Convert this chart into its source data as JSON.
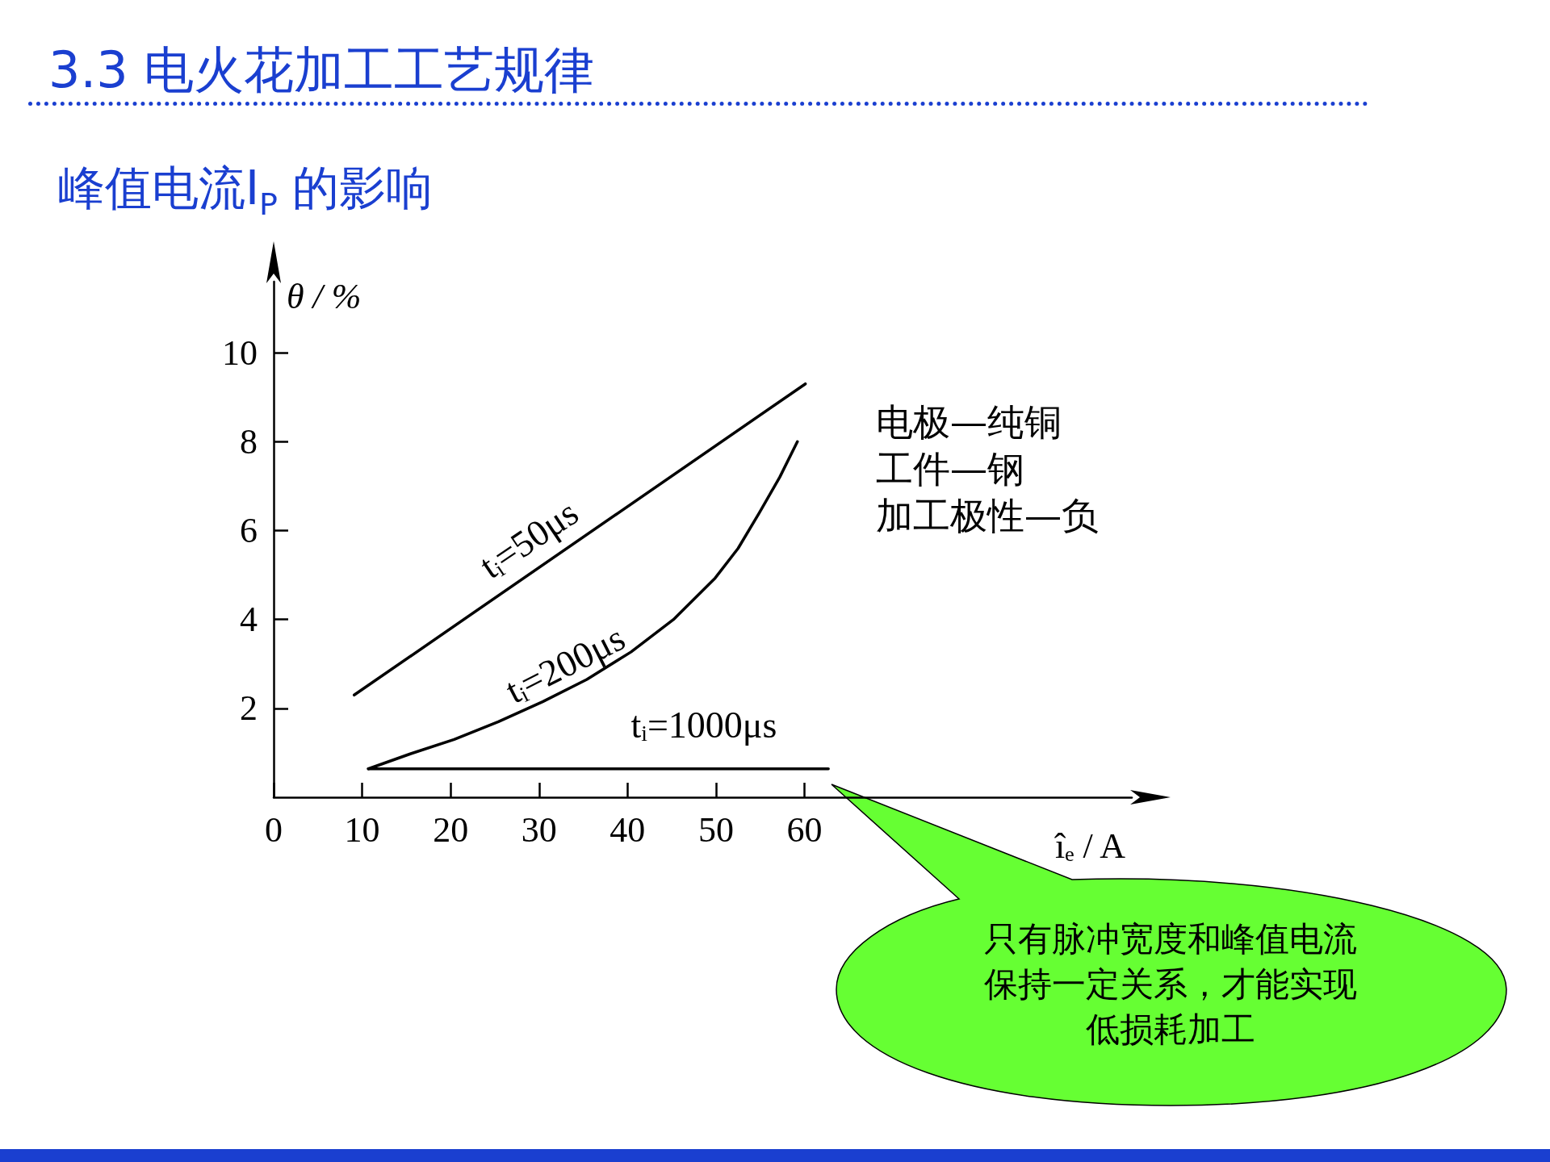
{
  "chart_data": {
    "type": "line",
    "title": "3.3 电火花加工工艺规律",
    "subtitle": "峰值电流I$_{P}$ 的影响",
    "xlabel": "îₑ / A",
    "ylabel": "θ / %",
    "xlim": [
      0,
      97
    ],
    "xticks": [
      0,
      10,
      20,
      30,
      40,
      50,
      60
    ],
    "ylim": [
      0,
      11.6
    ],
    "yticks": [
      2,
      4,
      6,
      8,
      10
    ],
    "grid": false,
    "marker": "none",
    "line_style": "solid",
    "series": [
      {
        "color": "#000000",
        "x": [
          9.1,
          60.1
        ],
        "values": [
          2.3,
          9.3
        ]
      },
      {
        "color": "#000000",
        "x": [
          10.7,
          15.5,
          20.4,
          25.4,
          30.4,
          35.4,
          40.4,
          45.2,
          49.9,
          52.5,
          54.9,
          57.2,
          59.2
        ],
        "values": [
          0.64,
          0.98,
          1.3,
          1.7,
          2.15,
          2.65,
          3.27,
          4.0,
          4.93,
          5.6,
          6.4,
          7.2,
          8.0
        ]
      },
      {
        "color": "#000000",
        "x": [
          10.7,
          62.7
        ],
        "values": [
          0.64,
          0.64
        ]
      }
    ],
    "annotations": [
      "tᵢ=50μs",
      "tᵢ=200μs",
      "tᵢ=1000μs",
      "电极—纯铜",
      "工件—钢",
      "加工极性—负",
      "只有脉冲宽度和峰值电流保持一定关系，才能实现低损耗加工"
    ]
  }
}
